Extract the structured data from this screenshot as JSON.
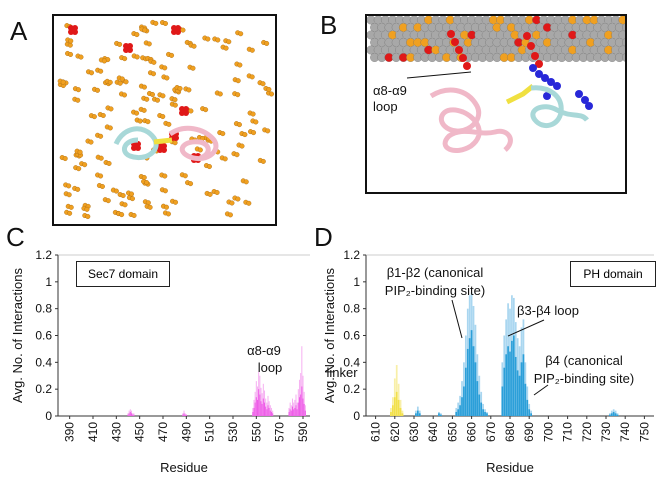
{
  "panels": {
    "a": {
      "letter": "A"
    },
    "b": {
      "letter": "B",
      "loop_label": "α8-α9",
      "loop_label_2": "loop"
    },
    "c": {
      "letter": "C"
    },
    "d": {
      "letter": "D"
    }
  },
  "colors": {
    "sec7_bar": "#ee5ee8",
    "sec7_bar_light": "#f6b3f2",
    "ph_bar": "#2b9fd9",
    "ph_bar_light": "#a9d6f0",
    "linker_bar": "#f2e04a",
    "linker_bar_light": "#f8efa8",
    "lipid_orange": "#f0a020",
    "pip2_red": "#e01818",
    "lipid_gray": "#a8a8a8",
    "basic_blue": "#2828d8",
    "sec7_ribbon": "#f0b8c8",
    "ph_ribbon": "#a8d8d8",
    "linker_ribbon": "#f0e040"
  },
  "chart_data": [
    {
      "type": "bar",
      "panel": "C",
      "domain_box": "Sec7 domain",
      "ylabel": "Avg. No. of Interactions",
      "xlabel": "Residue",
      "ylim": [
        0,
        1.2
      ],
      "yticks": [
        "0",
        "0.2",
        "0.4",
        "0.6",
        "0.8",
        "1",
        "1.2"
      ],
      "xlim": [
        380,
        596
      ],
      "xticks": [
        "390",
        "410",
        "430",
        "450",
        "470",
        "490",
        "510",
        "530",
        "550",
        "570",
        "590"
      ],
      "annotations": [
        {
          "text": "α8-α9",
          "text2": "loop"
        }
      ],
      "series": [
        {
          "x": [
            440,
            441,
            442,
            443,
            444,
            445,
            487,
            488,
            489,
            490,
            547,
            548,
            549,
            550,
            551,
            552,
            553,
            554,
            555,
            556,
            557,
            558,
            559,
            560,
            561,
            562,
            563,
            564,
            578,
            579,
            580,
            581,
            582,
            583,
            584,
            585,
            586,
            587,
            588,
            589,
            590,
            591,
            592
          ],
          "values": [
            0.01,
            0.02,
            0.03,
            0.02,
            0.01,
            0.01,
            0.01,
            0.02,
            0.01,
            0.01,
            0.03,
            0.06,
            0.1,
            0.14,
            0.12,
            0.2,
            0.16,
            0.11,
            0.09,
            0.13,
            0.1,
            0.07,
            0.05,
            0.08,
            0.06,
            0.04,
            0.03,
            0.02,
            0.03,
            0.05,
            0.04,
            0.07,
            0.05,
            0.06,
            0.08,
            0.05,
            0.1,
            0.14,
            0.16,
            0.22,
            0.13,
            0.09,
            0.04
          ],
          "upper": [
            0.02,
            0.04,
            0.05,
            0.04,
            0.02,
            0.02,
            0.02,
            0.04,
            0.02,
            0.01,
            0.06,
            0.12,
            0.18,
            0.26,
            0.22,
            0.33,
            0.3,
            0.21,
            0.17,
            0.24,
            0.19,
            0.13,
            0.1,
            0.15,
            0.11,
            0.08,
            0.06,
            0.04,
            0.06,
            0.1,
            0.08,
            0.13,
            0.1,
            0.12,
            0.16,
            0.1,
            0.2,
            0.27,
            0.32,
            0.52,
            0.3,
            0.18,
            0.08
          ]
        }
      ]
    },
    {
      "type": "bar",
      "panel": "D",
      "domain_box": "PH domain",
      "ylabel": "Avg. No. of Interactions",
      "xlabel": "Residue",
      "ylim": [
        0,
        1.2
      ],
      "yticks": [
        "0",
        "0.2",
        "0.4",
        "0.6",
        "0.8",
        "1",
        "1.2"
      ],
      "xlim": [
        605,
        755
      ],
      "xticks": [
        "610",
        "620",
        "630",
        "640",
        "650",
        "660",
        "670",
        "680",
        "690",
        "700",
        "710",
        "720",
        "730",
        "740",
        "750"
      ],
      "annotations": [
        {
          "text": "linker"
        },
        {
          "text": "β1-β2 (canonical",
          "text2": "PIP₂-binding site)"
        },
        {
          "text": "β3-β4 loop"
        },
        {
          "text": "β4 (canonical",
          "text2": "PIP₂-binding site)"
        }
      ],
      "series": [
        {
          "name": "linker",
          "x": [
            618,
            619,
            620,
            621,
            622,
            623,
            624
          ],
          "values": [
            0.03,
            0.08,
            0.14,
            0.18,
            0.12,
            0.06,
            0.02
          ],
          "upper": [
            0.06,
            0.14,
            0.28,
            0.38,
            0.24,
            0.12,
            0.04
          ]
        },
        {
          "name": "PH",
          "x": [
            631,
            632,
            633,
            643,
            644,
            652,
            653,
            654,
            655,
            656,
            657,
            658,
            659,
            660,
            661,
            662,
            663,
            664,
            665,
            666,
            667,
            668,
            676,
            677,
            678,
            679,
            680,
            681,
            682,
            683,
            684,
            685,
            686,
            687,
            688,
            689,
            690,
            691,
            732,
            733,
            734,
            735,
            736
          ],
          "values": [
            0.02,
            0.04,
            0.02,
            0.02,
            0.01,
            0.03,
            0.05,
            0.08,
            0.14,
            0.22,
            0.36,
            0.5,
            0.58,
            0.64,
            0.52,
            0.4,
            0.26,
            0.16,
            0.1,
            0.05,
            0.03,
            0.02,
            0.22,
            0.36,
            0.46,
            0.52,
            0.48,
            0.56,
            0.6,
            0.44,
            0.34,
            0.3,
            0.4,
            0.46,
            0.24,
            0.12,
            0.05,
            0.02,
            0.01,
            0.02,
            0.03,
            0.02,
            0.01
          ],
          "upper": [
            0.04,
            0.07,
            0.04,
            0.03,
            0.02,
            0.06,
            0.1,
            0.15,
            0.26,
            0.4,
            0.6,
            0.8,
            0.9,
            0.92,
            0.82,
            0.68,
            0.46,
            0.3,
            0.18,
            0.09,
            0.05,
            0.03,
            0.4,
            0.6,
            0.72,
            0.84,
            0.8,
            0.9,
            0.88,
            0.7,
            0.58,
            0.52,
            0.66,
            0.72,
            0.4,
            0.22,
            0.09,
            0.04,
            0.02,
            0.04,
            0.05,
            0.04,
            0.02
          ]
        }
      ]
    }
  ]
}
